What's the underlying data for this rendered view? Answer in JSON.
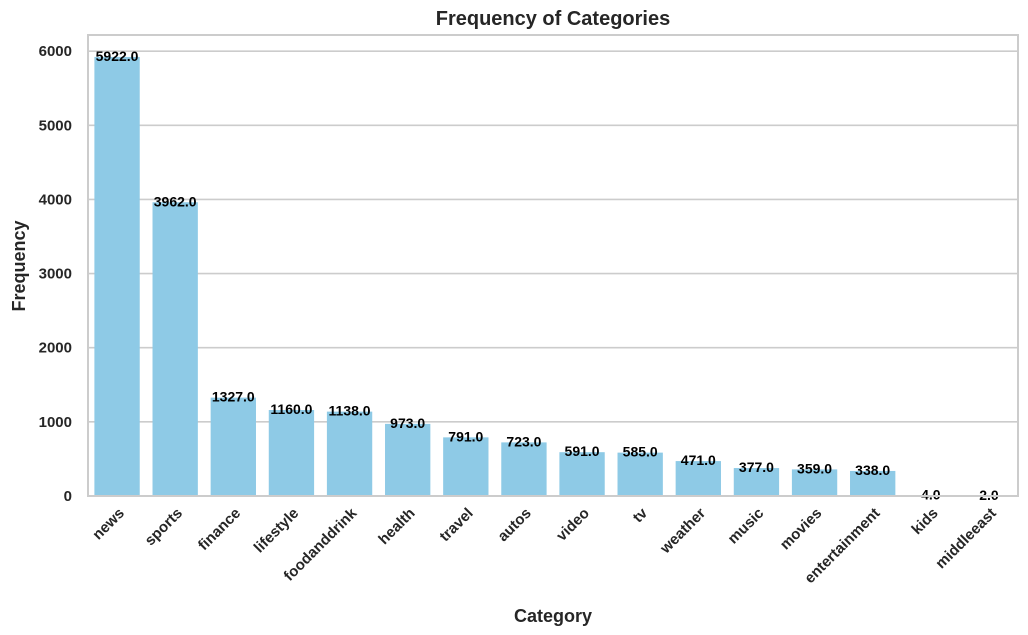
{
  "chart_data": {
    "type": "bar",
    "title": "Frequency of Categories",
    "xlabel": "Category",
    "ylabel": "Frequency",
    "categories": [
      "news",
      "sports",
      "finance",
      "lifestyle",
      "foodanddrink",
      "health",
      "travel",
      "autos",
      "video",
      "tv",
      "weather",
      "music",
      "movies",
      "entertainment",
      "kids",
      "middleeast"
    ],
    "values": [
      5922,
      3962,
      1327,
      1160,
      1138,
      973,
      791,
      723,
      591,
      585,
      471,
      377,
      359,
      338,
      4,
      2
    ],
    "value_labels": [
      "5922.0",
      "3962.0",
      "1327.0",
      "1160.0",
      "1138.0",
      "973.0",
      "791.0",
      "723.0",
      "591.0",
      "585.0",
      "471.0",
      "377.0",
      "359.0",
      "338.0",
      "4.0",
      "2.0"
    ],
    "yticks": [
      0,
      1000,
      2000,
      3000,
      4000,
      5000,
      6000
    ],
    "ylim": [
      0,
      6218
    ],
    "grid": true,
    "bar_color": "#8ecae6",
    "grid_color": "#cccccc"
  }
}
